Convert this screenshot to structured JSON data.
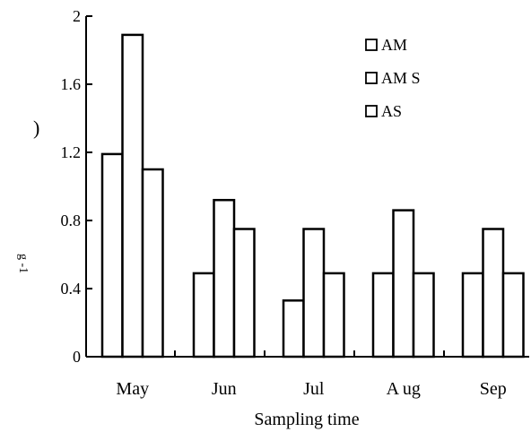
{
  "chart_data": {
    "type": "bar",
    "categories": [
      "May",
      "Jun",
      "Jul",
      "A ug",
      "Sep"
    ],
    "series": [
      {
        "name": "AM",
        "values": [
          1.19,
          0.49,
          0.33,
          0.49,
          0.49
        ]
      },
      {
        "name": "AM S",
        "values": [
          1.89,
          0.92,
          0.75,
          0.86,
          0.75
        ]
      },
      {
        "name": "AS",
        "values": [
          1.1,
          0.75,
          0.49,
          0.49,
          0.49
        ]
      }
    ],
    "xlabel": "Sampling time",
    "ylabel_fragments": [
      ")",
      "g -1"
    ],
    "ylim": [
      0,
      2
    ],
    "yticks": [
      "0",
      "0.4",
      "0.8",
      "1.2",
      "1.6",
      "2"
    ],
    "legend_position": "top-right",
    "grid": false,
    "bar_fill": "#ffffff",
    "bar_stroke": "#000000"
  }
}
